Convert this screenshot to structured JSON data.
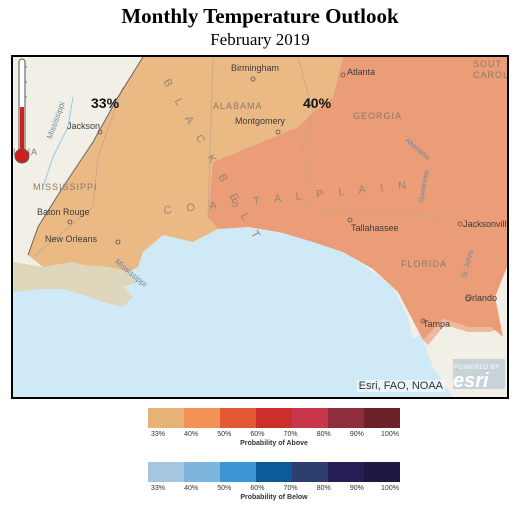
{
  "title": "Monthly Temperature Outlook",
  "subtitle": "February 2019",
  "map": {
    "regions": [
      {
        "probability_label": "33%",
        "category": "above",
        "color": "#e9b47c"
      },
      {
        "probability_label": "40%",
        "category": "above",
        "color": "#e9966c"
      }
    ],
    "labels": {
      "birmingham": "Birmingham",
      "atlanta": "Atlanta",
      "south_carolina": "SOUT CAROLI",
      "alabama": "ALABAMA",
      "montgomery": "Montgomery",
      "georgia": "GEORGIA",
      "jackson": "Jackson",
      "black_belt": "B L A C K  B E L T",
      "iana": "IANA",
      "mississippi": "MISSISSIPPI",
      "coastal_plain": "C O A S T A L   P L A I N",
      "baton_rouge": "Baton Rouge",
      "new_orleans": "New Orleans",
      "tallahassee": "Tallahassee",
      "jacksonville": "Jacksonvill",
      "florida": "FLORIDA",
      "orlando": "Orlando",
      "tampa": "Tampa",
      "mississippi_river": "Mississippi",
      "mississippi_delta": "Mississippi",
      "altamaha": "Altamaha",
      "suwannee": "Suwannee",
      "st_johns": "St. Johns"
    },
    "attribution": "Esri, FAO, NOAA",
    "esri_logo": {
      "powered": "POWERED BY",
      "word": "esri"
    }
  },
  "legend_above": {
    "title": "Probability of Above",
    "ticks": [
      "33%",
      "40%",
      "50%",
      "60%",
      "70%",
      "80%",
      "90%",
      "100%"
    ],
    "colors": [
      "#e6b275",
      "#f39254",
      "#e25a34",
      "#cc2f2b",
      "#c8364c",
      "#8e2d3b",
      "#6b2129"
    ]
  },
  "legend_below": {
    "title": "Probability of Below",
    "ticks": [
      "33%",
      "40%",
      "50%",
      "60%",
      "70%",
      "80%",
      "90%",
      "100%"
    ],
    "colors": [
      "#a5c6e1",
      "#7eb5df",
      "#3c96d6",
      "#0c5a99",
      "#2c3f6e",
      "#261f57",
      "#1e1845"
    ]
  }
}
